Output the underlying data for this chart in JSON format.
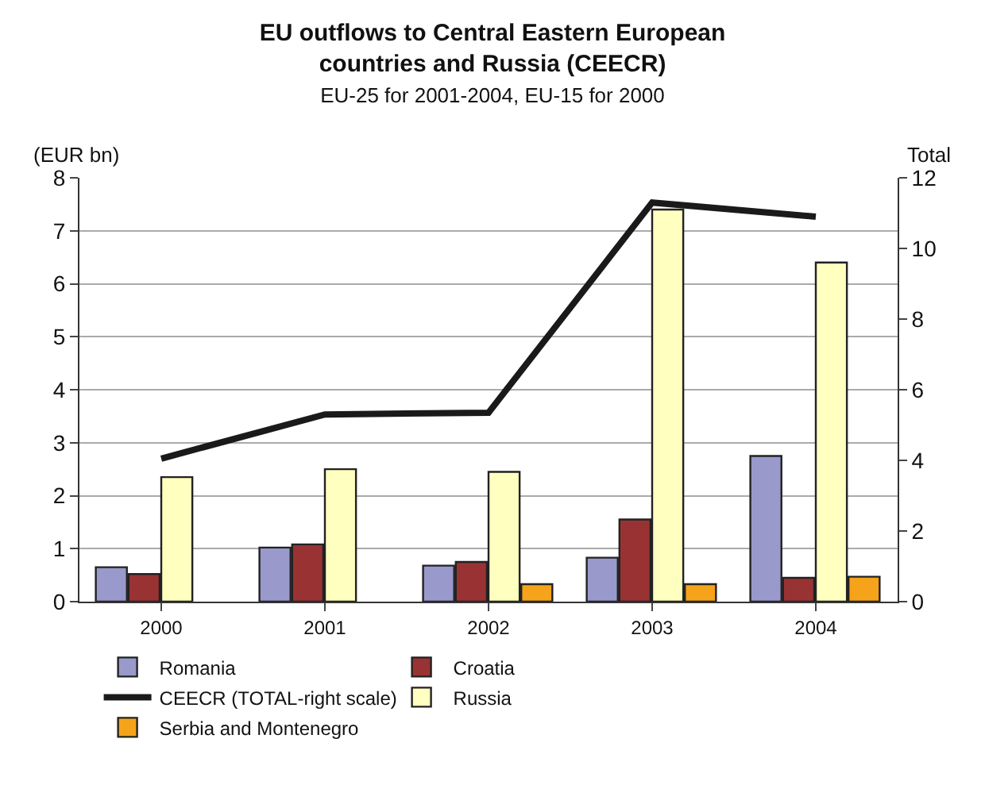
{
  "chart_data": {
    "type": "bar",
    "title": "EU outflows to Central Eastern European countries and Russia (CEECR)",
    "subtitle": "EU-25 for 2001-2004, EU-15 for 2000",
    "ylabel": "(EUR bn)",
    "y2label": "Total",
    "categories": [
      "2000",
      "2001",
      "2002",
      "2003",
      "2004"
    ],
    "series": [
      {
        "name": "Romania",
        "color": "#9999cc",
        "values": [
          0.65,
          1.02,
          0.68,
          0.83,
          2.75
        ]
      },
      {
        "name": "Croatia",
        "color": "#993333",
        "values": [
          0.52,
          1.08,
          0.75,
          1.55,
          0.45
        ]
      },
      {
        "name": "CEECR (TOTAL-right scale)",
        "type": "line",
        "axis": "y2",
        "color": "#1a1a1a",
        "values": [
          4.05,
          5.3,
          5.35,
          11.3,
          10.9
        ]
      },
      {
        "name": "Russia",
        "color": "#ffffc0",
        "values": [
          2.35,
          2.5,
          2.45,
          7.4,
          6.4
        ]
      },
      {
        "name": "Serbia and Montenegro",
        "color": "#f5a31a",
        "values": [
          null,
          null,
          0.33,
          0.33,
          0.47
        ]
      }
    ],
    "ylim": [
      0,
      8
    ],
    "yticks": [
      0,
      1,
      2,
      3,
      4,
      5,
      6,
      7,
      8
    ],
    "y2lim": [
      0,
      12
    ],
    "y2ticks": [
      0,
      2,
      4,
      6,
      8,
      10,
      12
    ],
    "grid": "y",
    "legend": "bottom",
    "marker": "none",
    "line_style": "solid"
  }
}
